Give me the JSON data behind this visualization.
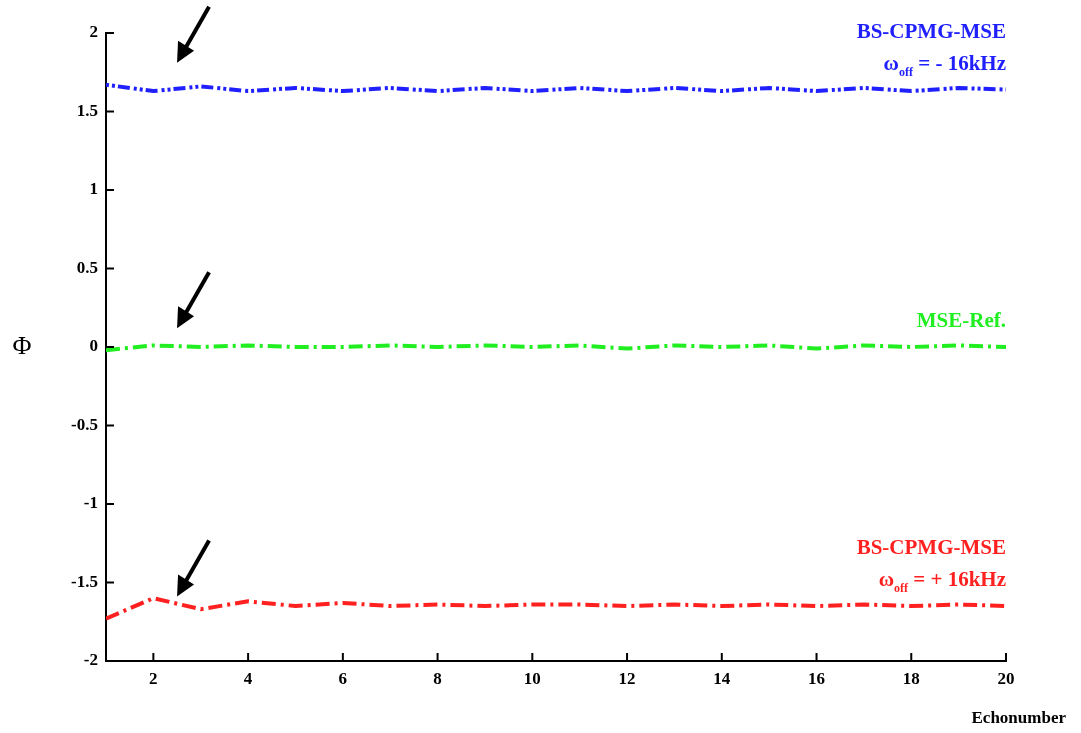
{
  "chart_data": {
    "type": "line",
    "xlabel": "Echonumber",
    "ylabel": "Φ",
    "x": [
      1,
      2,
      3,
      4,
      5,
      6,
      7,
      8,
      9,
      10,
      11,
      12,
      13,
      14,
      15,
      16,
      17,
      18,
      19,
      20
    ],
    "xlim": [
      1,
      20
    ],
    "xticks": [
      2,
      4,
      6,
      8,
      10,
      12,
      14,
      16,
      18,
      20
    ],
    "ylim": [
      -2,
      2
    ],
    "yticks": [
      -2,
      -1.5,
      -1,
      -0.5,
      0,
      0.5,
      1,
      1.5,
      2
    ],
    "grid": false,
    "legend": false,
    "marker": "none",
    "series": [
      {
        "name": "BS-CPMG-MSE\nω$_{off}$ = - 16kHz",
        "color": "#2020ff",
        "line_style": "dotted",
        "values": [
          1.67,
          1.63,
          1.66,
          1.63,
          1.65,
          1.63,
          1.65,
          1.63,
          1.65,
          1.63,
          1.65,
          1.63,
          1.65,
          1.63,
          1.65,
          1.63,
          1.65,
          1.63,
          1.65,
          1.64
        ]
      },
      {
        "name": "MSE-Ref.",
        "color": "#20ee20",
        "line_style": "dashed",
        "values": [
          -0.02,
          0.01,
          0,
          0.01,
          0,
          0,
          0.01,
          0,
          0.01,
          0,
          0.01,
          -0.01,
          0.01,
          0,
          0.01,
          -0.01,
          0.01,
          0,
          0.01,
          0
        ]
      },
      {
        "name": "BS-CPMG-MSE\nω$_{off}$ = + 16kHz",
        "color": "#ff2020",
        "line_style": "dashed",
        "values": [
          -1.73,
          -1.6,
          -1.67,
          -1.62,
          -1.65,
          -1.63,
          -1.65,
          -1.64,
          -1.65,
          -1.64,
          -1.64,
          -1.65,
          -1.64,
          -1.65,
          -1.64,
          -1.65,
          -1.64,
          -1.65,
          -1.64,
          -1.65
        ]
      }
    ]
  }
}
